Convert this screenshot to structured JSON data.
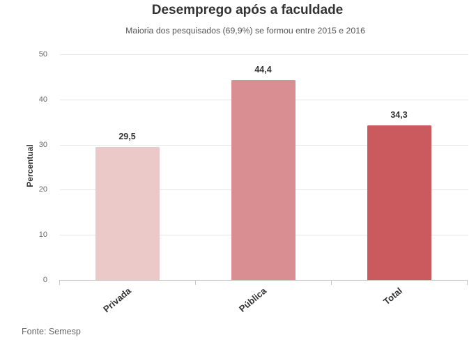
{
  "title": "Desemprego após a faculdade",
  "subtitle": "Maioria dos pesquisados (69,9%) se formou entre 2015 e 2016",
  "footer": "Fonte: Semesp",
  "colors": {
    "background": "#ffffff",
    "title_color": "#333333",
    "subtitle_color": "#555555",
    "gridline_color": "#e6e6e6",
    "axis_color": "#c9c9c9",
    "tick_label_color": "#666666",
    "label_color": "#333333",
    "bar_colors": [
      "#ecc9c9",
      "#d98f91",
      "#cb5a5e"
    ]
  },
  "chart_data": {
    "type": "bar",
    "title": "Desemprego após a faculdade",
    "subtitle": "Maioria dos pesquisados (69,9%) se formou entre 2015 e 2016",
    "categories": [
      "Privada",
      "Pública",
      "Total"
    ],
    "values": [
      29.5,
      44.4,
      34.3
    ],
    "value_labels": [
      "29,5",
      "44,4",
      "34,3"
    ],
    "xlabel": "",
    "ylabel": "Percentual",
    "ylim": [
      0,
      50
    ],
    "yticks": [
      0,
      10,
      20,
      30,
      40,
      50
    ],
    "grid": true,
    "legend": false,
    "source": "Fonte: Semesp"
  }
}
